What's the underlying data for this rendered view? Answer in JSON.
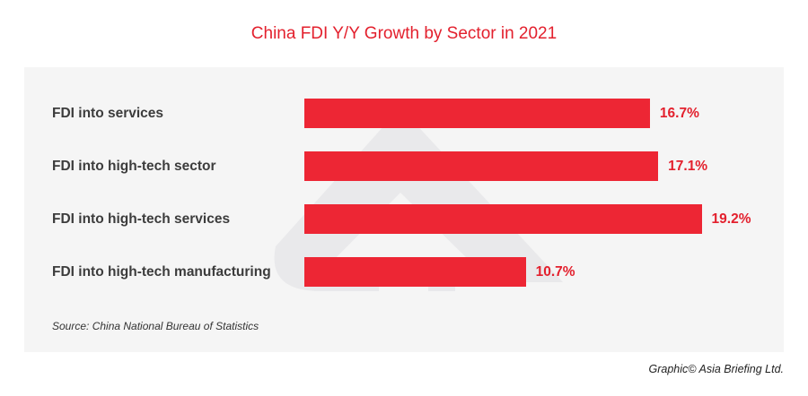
{
  "chart_data": {
    "type": "bar",
    "orientation": "horizontal",
    "title": "China FDI Y/Y Growth by Sector in 2021",
    "categories": [
      "FDI into services",
      "FDI into high-tech sector",
      "FDI into high-tech services",
      "FDI into high-tech manufacturing"
    ],
    "values": [
      16.7,
      17.1,
      19.2,
      10.7
    ],
    "value_labels": [
      "16.7%",
      "17.1%",
      "19.2%",
      "10.7%"
    ],
    "xlim": [
      0,
      20
    ],
    "grid": false,
    "bar_color": "#ec1f2d",
    "source": "Source: China National Bureau of Statistics"
  },
  "credit": "Graphic© Asia Briefing Ltd.",
  "watermark": "asia-briefing-logo"
}
